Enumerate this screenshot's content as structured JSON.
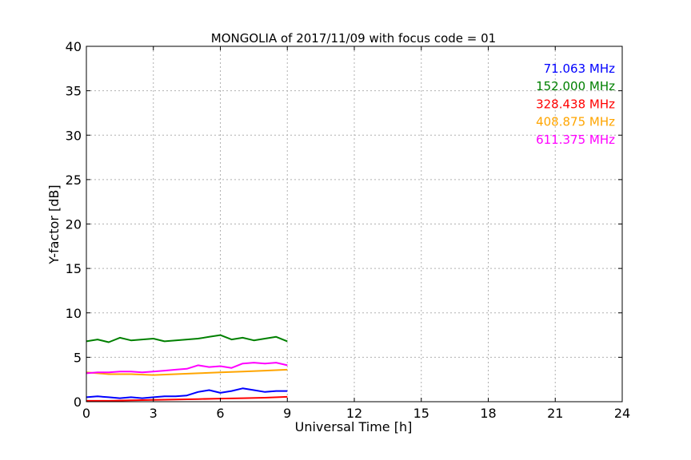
{
  "chart_data": {
    "type": "line",
    "title": "MONGOLIA of 2017/11/09 with focus code = 01",
    "xlabel": "Universal Time [h]",
    "ylabel": "Y-factor [dB]",
    "xlim": [
      0,
      24
    ],
    "ylim": [
      0,
      40
    ],
    "xticks": [
      0,
      3,
      6,
      9,
      12,
      15,
      18,
      21,
      24
    ],
    "yticks": [
      0,
      5,
      10,
      15,
      20,
      25,
      30,
      35,
      40
    ],
    "grid": true,
    "legend_position": "top-right",
    "series": [
      {
        "name": "71.063 MHz",
        "color": "#0000ff",
        "x": [
          0,
          0.5,
          1,
          1.5,
          2,
          2.5,
          3,
          3.5,
          4,
          4.5,
          5,
          5.5,
          6,
          6.5,
          7,
          7.5,
          8,
          8.5,
          9
        ],
        "y": [
          0.5,
          0.6,
          0.5,
          0.4,
          0.5,
          0.4,
          0.5,
          0.6,
          0.6,
          0.7,
          1.1,
          1.3,
          1.0,
          1.2,
          1.5,
          1.3,
          1.1,
          1.2,
          1.2
        ]
      },
      {
        "name": "152.000 MHz",
        "color": "#008000",
        "x": [
          0,
          0.5,
          1,
          1.5,
          2,
          2.5,
          3,
          3.5,
          4,
          4.5,
          5,
          5.5,
          6,
          6.5,
          7,
          7.5,
          8,
          8.5,
          9
        ],
        "y": [
          6.8,
          7.0,
          6.7,
          7.2,
          6.9,
          7.0,
          7.1,
          6.8,
          6.9,
          7.0,
          7.1,
          7.3,
          7.5,
          7.0,
          7.2,
          6.9,
          7.1,
          7.3,
          6.8
        ]
      },
      {
        "name": "328.438 MHz",
        "color": "#ff0000",
        "x": [
          0,
          1,
          2,
          3,
          4,
          5,
          6,
          7,
          8,
          9
        ],
        "y": [
          0.1,
          0.1,
          0.15,
          0.2,
          0.25,
          0.3,
          0.35,
          0.4,
          0.45,
          0.55
        ]
      },
      {
        "name": "408.875 MHz",
        "color": "#ffa500",
        "x": [
          0,
          1,
          2,
          3,
          4,
          5,
          6,
          7,
          8,
          9
        ],
        "y": [
          3.3,
          3.1,
          3.1,
          3.0,
          3.1,
          3.2,
          3.3,
          3.4,
          3.5,
          3.6
        ]
      },
      {
        "name": "611.375 MHz",
        "color": "#ff00ff",
        "x": [
          0,
          0.5,
          1,
          1.5,
          2,
          2.5,
          3,
          3.5,
          4,
          4.5,
          5,
          5.5,
          6,
          6.5,
          7,
          7.5,
          8,
          8.5,
          9
        ],
        "y": [
          3.2,
          3.3,
          3.3,
          3.4,
          3.4,
          3.3,
          3.4,
          3.5,
          3.6,
          3.7,
          4.1,
          3.9,
          4.0,
          3.8,
          4.3,
          4.4,
          4.3,
          4.4,
          4.1
        ]
      }
    ]
  }
}
